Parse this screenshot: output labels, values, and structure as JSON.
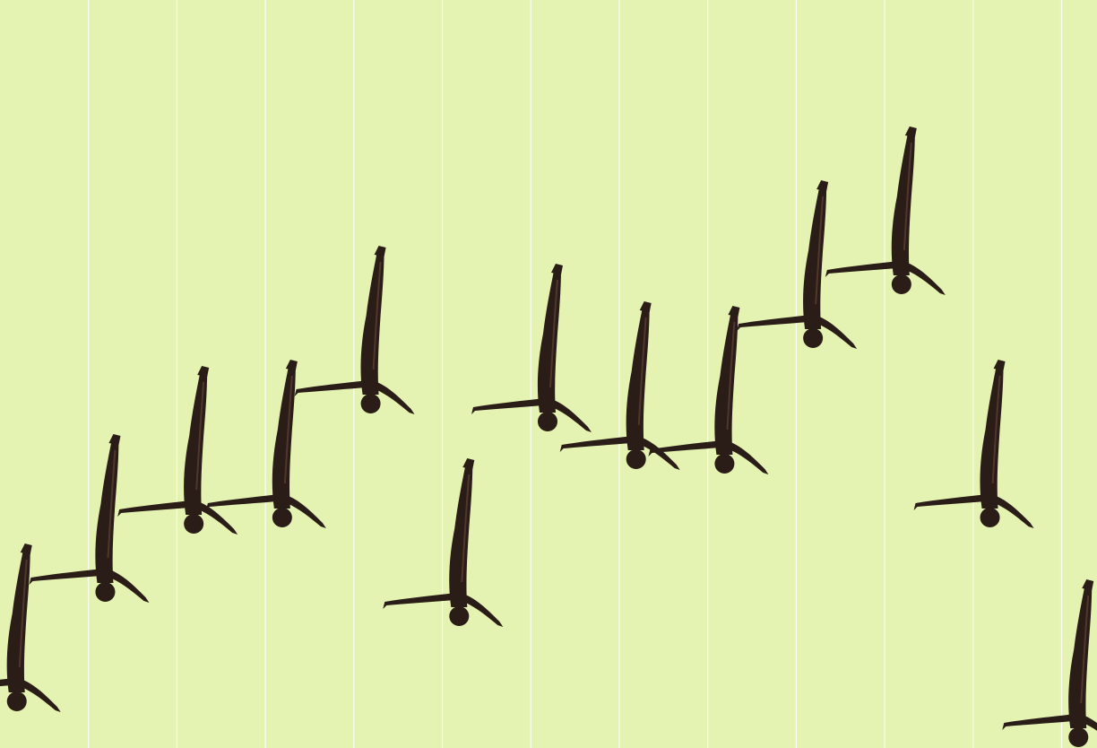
{
  "background_color": "#e4f3b1",
  "gridline_color": "#ffffff",
  "marker_icon": "upside-down-diver-icon",
  "marker_color": "#2a1c17",
  "chart_data": {
    "type": "scatter",
    "title": "",
    "xlabel": "",
    "ylabel": "",
    "grid": {
      "vertical": true,
      "horizontal": false
    },
    "legend": "none",
    "x": [
      0,
      1,
      2,
      3,
      4,
      5,
      6,
      7,
      8,
      9,
      10,
      11,
      12
    ],
    "values": [
      0.5,
      1.72,
      2.48,
      2.55,
      3.82,
      1.45,
      3.62,
      3.2,
      3.15,
      4.55,
      5.15,
      2.55,
      0.1
    ],
    "xlim": [
      -0.2,
      12.2
    ],
    "ylim": [
      0,
      8.34
    ]
  }
}
